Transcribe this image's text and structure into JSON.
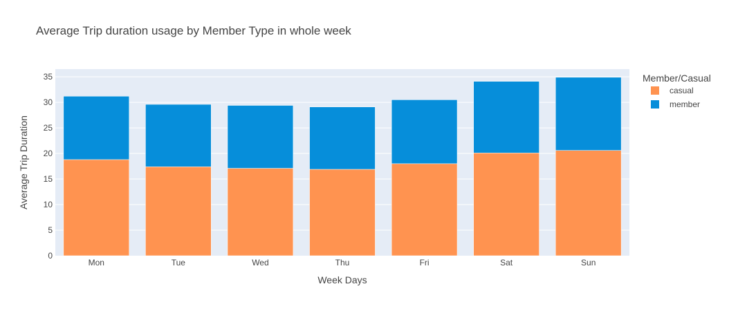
{
  "chart_data": {
    "type": "bar",
    "barmode": "stack",
    "title": "Average Trip duration usage by Member Type in whole week",
    "xlabel": "Week Days",
    "ylabel": "Average Trip Duration",
    "ylim": [
      0,
      36.5
    ],
    "yticks": [
      0,
      5,
      10,
      15,
      20,
      25,
      30,
      35
    ],
    "grid": true,
    "legend_title": "Member/Casual",
    "legend_position": "top-right",
    "categories": [
      "Mon",
      "Tue",
      "Wed",
      "Thu",
      "Fri",
      "Sat",
      "Sun"
    ],
    "series": [
      {
        "name": "casual",
        "color": "#FF9350",
        "values": [
          18.8,
          17.4,
          17.1,
          16.9,
          18.0,
          20.1,
          20.6
        ]
      },
      {
        "name": "member",
        "color": "#068EDA",
        "values": [
          12.4,
          12.2,
          12.3,
          12.2,
          12.5,
          14.0,
          14.3
        ]
      }
    ]
  }
}
